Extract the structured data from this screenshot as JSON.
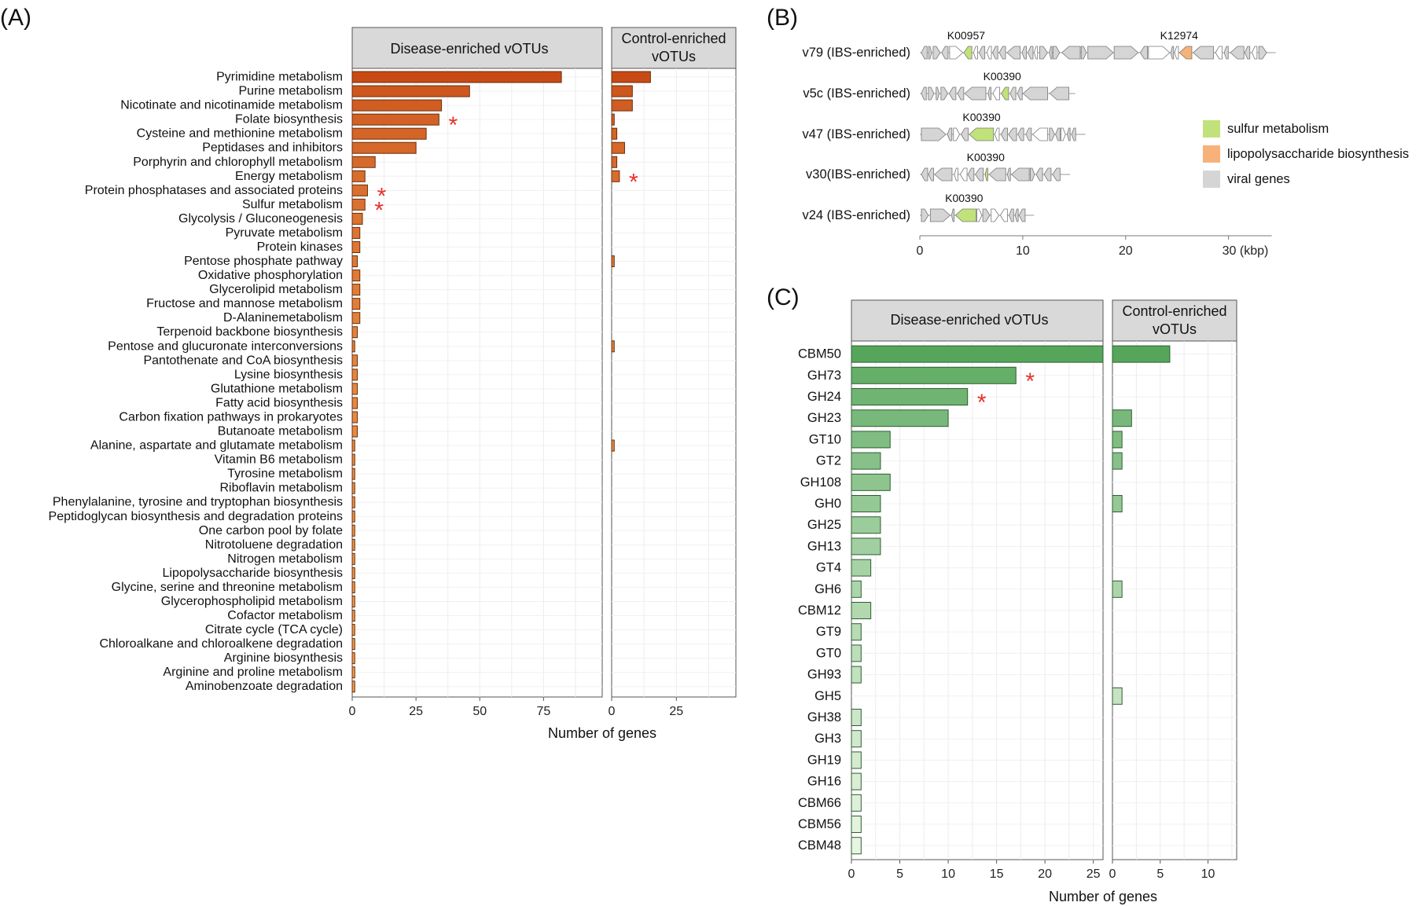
{
  "panel_labels": {
    "a": "(A)",
    "b": "(B)",
    "c": "(C)"
  },
  "colors": {
    "bar_dark": "#c74a15",
    "bar_light": "#f0a050",
    "bar_outline": "#6b2e0b",
    "green_dark": "#55a65a",
    "green_light": "#e7f5e2",
    "green_outline": "#2d5e30",
    "sulfur": "#c1e27a",
    "lps": "#f6b27a",
    "viral": "#d5d5d5",
    "star": "#e8322b",
    "strip_fill": "#d9d9d9"
  },
  "chart_data": [
    {
      "id": "A",
      "type": "bar",
      "orientation": "horizontal",
      "facets": [
        "Disease-enriched vOTUs",
        "Control-enriched vOTUs"
      ],
      "xlabel": "Number of genes",
      "ylabel": "",
      "xlim_disease": [
        0,
        98
      ],
      "xlim_control": [
        0,
        48
      ],
      "ticks_disease": [
        0,
        25,
        50,
        75
      ],
      "ticks_control": [
        0,
        25
      ],
      "grid": true,
      "categories": [
        "Pyrimidine metabolism",
        "Purine metabolism",
        "Nicotinate and nicotinamide metabolism",
        "Folate biosynthesis",
        "Cysteine and methionine metabolism",
        "Peptidases and inhibitors",
        "Porphyrin and chlorophyll metabolism",
        "Energy metabolism",
        "Protein phosphatases and associated proteins",
        "Sulfur metabolism",
        "Glycolysis / Gluconeogenesis",
        "Pyruvate metabolism",
        "Protein kinases",
        "Pentose phosphate pathway",
        "Oxidative phosphorylation",
        "Glycerolipid metabolism",
        "Fructose and mannose metabolism",
        "D-Alaninemetabolism",
        "Terpenoid backbone biosynthesis",
        "Pentose and glucuronate interconversions",
        "Pantothenate and CoA biosynthesis",
        "Lysine biosynthesis",
        "Glutathione metabolism",
        "Fatty acid biosynthesis",
        "Carbon fixation pathways in prokaryotes",
        "Butanoate metabolism",
        "Alanine, aspartate and glutamate metabolism",
        "Vitamin B6 metabolism",
        "Tyrosine metabolism",
        "Riboflavin metabolism",
        "Phenylalanine, tyrosine and tryptophan biosynthesis",
        "Peptidoglycan biosynthesis and degradation proteins",
        "One carbon pool by folate",
        "Nitrotoluene degradation",
        "Nitrogen metabolism",
        "Lipopolysaccharide biosynthesis",
        "Glycine, serine and threonine metabolism",
        "Glycerophospholipid metabolism",
        "Cofactor metabolism",
        "Citrate cycle (TCA cycle)",
        "Chloroalkane and chloroalkene degradation",
        "Arginine biosynthesis",
        "Arginine and proline metabolism",
        "Aminobenzoate degradation"
      ],
      "series": [
        {
          "values": [
            82,
            46,
            35,
            34,
            29,
            25,
            9,
            5,
            6,
            5,
            4,
            3,
            3,
            2,
            3,
            3,
            3,
            3,
            2,
            1,
            2,
            2,
            2,
            2,
            2,
            2,
            1,
            1,
            1,
            1,
            1,
            1,
            1,
            1,
            1,
            1,
            1,
            1,
            1,
            1,
            1,
            1,
            1,
            1
          ]
        },
        {
          "values": [
            15,
            8,
            8,
            1,
            2,
            5,
            2,
            3,
            0,
            0,
            0,
            0,
            0,
            1,
            0,
            0,
            0,
            0,
            0,
            1,
            0,
            0,
            0,
            0,
            0,
            0,
            1,
            0,
            0,
            0,
            0,
            0,
            0,
            0,
            0,
            0,
            0,
            0,
            0,
            0,
            0,
            0,
            0,
            0
          ]
        }
      ],
      "significant": [
        {
          "category": "Folate biosynthesis",
          "facet": 0
        },
        {
          "category": "Protein phosphatases and associated proteins",
          "facet": 0
        },
        {
          "category": "Sulfur metabolism",
          "facet": 0
        },
        {
          "category": "Energy metabolism",
          "facet": 1
        }
      ],
      "star_symbol": "*"
    },
    {
      "id": "C",
      "type": "bar",
      "orientation": "horizontal",
      "facets": [
        "Disease-enriched vOTUs",
        "Control-enriched vOTUs"
      ],
      "xlabel": "Number of genes",
      "ylabel": "",
      "xlim_disease": [
        0,
        26
      ],
      "xlim_control": [
        0,
        13
      ],
      "ticks_disease": [
        0,
        5,
        10,
        15,
        20,
        25
      ],
      "ticks_control": [
        0,
        5,
        10
      ],
      "grid": true,
      "categories": [
        "CBM50",
        "GH73",
        "GH24",
        "GH23",
        "GT10",
        "GT2",
        "GH108",
        "GH0",
        "GH25",
        "GH13",
        "GT4",
        "GH6",
        "CBM12",
        "GT9",
        "GT0",
        "GH93",
        "GH5",
        "GH38",
        "GH3",
        "GH19",
        "GH16",
        "CBM66",
        "CBM56",
        "CBM48"
      ],
      "series": [
        {
          "values": [
            26,
            17,
            12,
            10,
            4,
            3,
            4,
            3,
            3,
            3,
            2,
            1,
            2,
            1,
            1,
            1,
            0,
            1,
            1,
            1,
            1,
            1,
            1,
            1
          ]
        },
        {
          "values": [
            6,
            0,
            0,
            2,
            1,
            1,
            0,
            1,
            0,
            0,
            0,
            1,
            0,
            0,
            0,
            0,
            1,
            0,
            0,
            0,
            0,
            0,
            0,
            0
          ]
        }
      ],
      "significant": [
        {
          "category": "GH73",
          "facet": 0
        },
        {
          "category": "GH24",
          "facet": 0
        }
      ],
      "star_symbol": "*"
    },
    {
      "id": "B",
      "type": "diagram",
      "xlabel": "(kbp)",
      "xlim": [
        0,
        34
      ],
      "ticks": [
        0,
        10,
        20,
        30
      ],
      "tick_labels": [
        "0",
        "10",
        "20",
        "30 (kbp)"
      ],
      "genomes": [
        {
          "name": "v79 (IBS-enriched)",
          "length": 34,
          "highlights": [
            {
              "label": "K00957",
              "pos": 4.5,
              "category": "sulfur"
            },
            {
              "label": "K12974",
              "pos": 25.2,
              "category": "lps"
            }
          ]
        },
        {
          "name": "v5c (IBS-enriched)",
          "length": 14.5,
          "highlights": [
            {
              "label": "K00390",
              "pos": 8.0,
              "category": "sulfur"
            }
          ]
        },
        {
          "name": "v47 (IBS-enriched)",
          "length": 15.5,
          "highlights": [
            {
              "label": "K00390",
              "pos": 6.0,
              "category": "sulfur"
            }
          ]
        },
        {
          "name": "v30(IBS-enriched)",
          "length": 14.0,
          "highlights": [
            {
              "label": "K00390",
              "pos": 6.4,
              "category": "sulfur"
            }
          ]
        },
        {
          "name": "v24 (IBS-enriched)",
          "length": 10.5,
          "highlights": [
            {
              "label": "K00390",
              "pos": 4.3,
              "category": "sulfur"
            }
          ]
        }
      ],
      "legend": [
        {
          "label": "sulfur metabolism",
          "category": "sulfur"
        },
        {
          "label": "lipopolysaccharide biosynthesis",
          "category": "lps"
        },
        {
          "label": "viral genes",
          "category": "viral"
        }
      ]
    }
  ]
}
